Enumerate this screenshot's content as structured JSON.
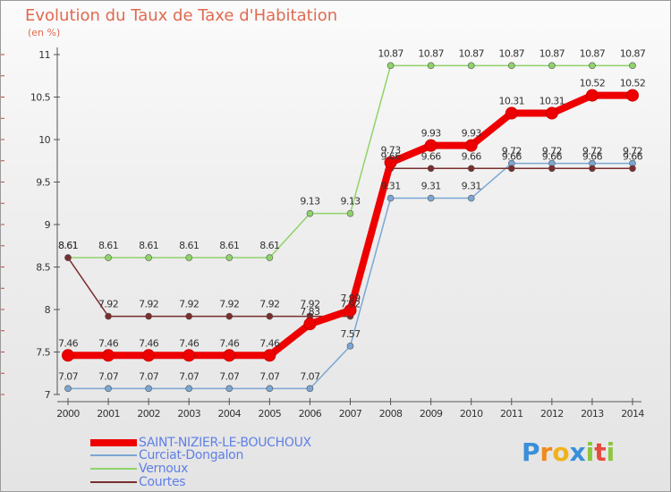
{
  "header": {
    "title": "Evolution du Taux de Taxe d'Habitation",
    "unit": "(en %)"
  },
  "chart_data": {
    "type": "line",
    "title": "Evolution du Taux de Taxe d'Habitation",
    "ylabel": "(en %)",
    "xlabel": "",
    "x": [
      "2000",
      "2001",
      "2002",
      "2003",
      "2004",
      "2005",
      "2006",
      "2007",
      "2008",
      "2009",
      "2010",
      "2011",
      "2012",
      "2013",
      "2014"
    ],
    "ylim": [
      7,
      11
    ],
    "yticks": [
      "7",
      "7.5",
      "8",
      "8.5",
      "9",
      "9.5",
      "10",
      "10.5",
      "11"
    ],
    "series": [
      {
        "name": "SAINT-NIZIER-LE-BOUCHOUX",
        "color": "#ee0000",
        "values": [
          7.46,
          7.46,
          7.46,
          7.46,
          7.46,
          7.46,
          7.83,
          7.99,
          9.73,
          9.93,
          9.93,
          10.31,
          10.31,
          10.52,
          10.52
        ],
        "labels": [
          "7.46",
          "7.46",
          "7.46",
          "7.46",
          "7.46",
          "7.46",
          "7.83",
          "7.99",
          "9.73",
          "9.93",
          "9.93",
          "10.31",
          "10.31",
          "10.52",
          "10.52"
        ]
      },
      {
        "name": "Curciat-Dongalon",
        "color": "#7ba7d4",
        "values": [
          7.07,
          7.07,
          7.07,
          7.07,
          7.07,
          7.07,
          7.07,
          7.57,
          9.31,
          9.31,
          9.31,
          9.72,
          9.72,
          9.72,
          9.72
        ],
        "labels": [
          "7.07",
          "7.07",
          "7.07",
          "7.07",
          "7.07",
          "7.07",
          "7.07",
          "7.57",
          "9.31",
          "9.31",
          "9.31",
          "9.72",
          "9.72",
          "9.72",
          "9.72"
        ]
      },
      {
        "name": "Vernoux",
        "color": "#8fd36a",
        "values": [
          8.61,
          8.61,
          8.61,
          8.61,
          8.61,
          8.61,
          9.13,
          9.13,
          10.87,
          10.87,
          10.87,
          10.87,
          10.87,
          10.87,
          10.87
        ],
        "labels": [
          "8.61",
          "8.61",
          "8.61",
          "8.61",
          "8.61",
          "8.61",
          "9.13",
          "9.13",
          "10.87",
          "10.87",
          "10.87",
          "10.87",
          "10.87",
          "10.87",
          "10.87"
        ]
      },
      {
        "name": "Courtes",
        "color": "#7a2e2e",
        "values": [
          8.61,
          7.92,
          7.92,
          7.92,
          7.92,
          7.92,
          7.92,
          7.92,
          9.66,
          9.66,
          9.66,
          9.66,
          9.66,
          9.66,
          9.66
        ],
        "labels": [
          "8.61",
          "7.92",
          "7.92",
          "7.92",
          "7.92",
          "7.92",
          "7.92",
          "7.92",
          "9.66",
          "9.66",
          "9.66",
          "9.66",
          "9.66",
          "9.66",
          "9.66"
        ]
      }
    ]
  },
  "legend": {
    "items": [
      {
        "label": "SAINT-NIZIER-LE-BOUCHOUX",
        "color": "#ee0000"
      },
      {
        "label": "Curciat-Dongalon",
        "color": "#7ba7d4"
      },
      {
        "label": "Vernoux",
        "color": "#8fd36a"
      },
      {
        "label": "Courtes",
        "color": "#7a2e2e"
      }
    ]
  },
  "brand": {
    "letters": [
      "P",
      "r",
      "o",
      "x",
      "i",
      "t",
      "i"
    ],
    "colors": [
      "#3a8fd8",
      "#f08a1c",
      "#f0b21c",
      "#3a8fd8",
      "#8cc63f",
      "#e64a3c",
      "#8cc63f"
    ]
  }
}
